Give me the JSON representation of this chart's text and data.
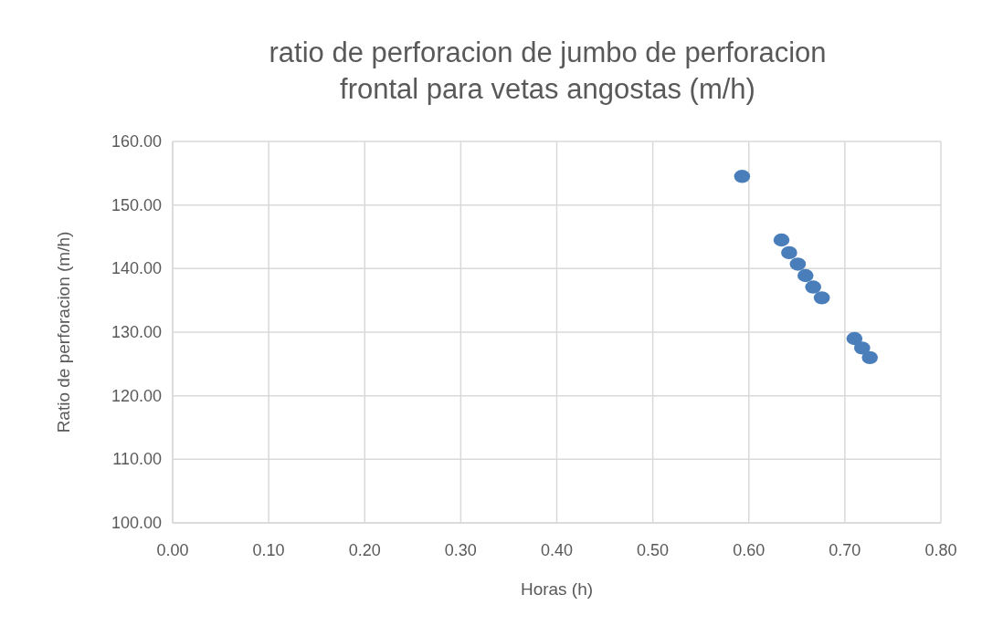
{
  "chart_data": {
    "type": "scatter",
    "title": "ratio de perforacion  de jumbo de perforacion frontal para vetas angostas (m/h)",
    "xlabel": "Horas (h)",
    "ylabel": "Ratio de perforacion (m/h)",
    "x": [
      0.593,
      0.634,
      0.642,
      0.651,
      0.659,
      0.667,
      0.676,
      0.71,
      0.718,
      0.726
    ],
    "series": [
      {
        "color": "#4a7ebb",
        "values": [
          154.5,
          144.5,
          142.5,
          140.7,
          138.9,
          137.1,
          135.4,
          129.0,
          127.5,
          126.0
        ]
      }
    ],
    "xlim": [
      0,
      0.8
    ],
    "xticks": [
      {
        "value": 0,
        "label": "0.00"
      },
      {
        "value": 0.1,
        "label": "0.10"
      },
      {
        "value": 0.2,
        "label": "0.20"
      },
      {
        "value": 0.3,
        "label": "0.30"
      },
      {
        "value": 0.4,
        "label": "0.40"
      },
      {
        "value": 0.5,
        "label": "0.50"
      },
      {
        "value": 0.6,
        "label": "0.60"
      },
      {
        "value": 0.7,
        "label": "0.70"
      },
      {
        "value": 0.8,
        "label": "0.80"
      }
    ],
    "ylim": [
      100,
      160
    ],
    "yticks": [
      {
        "value": 100,
        "label": "100.00"
      },
      {
        "value": 110,
        "label": "110.00"
      },
      {
        "value": 120,
        "label": "120.00"
      },
      {
        "value": 130,
        "label": "130.00"
      },
      {
        "value": 140,
        "label": "140.00"
      },
      {
        "value": 150,
        "label": "150.00"
      },
      {
        "value": 160,
        "label": "160.00"
      }
    ],
    "grid": true,
    "marker": "circle"
  }
}
